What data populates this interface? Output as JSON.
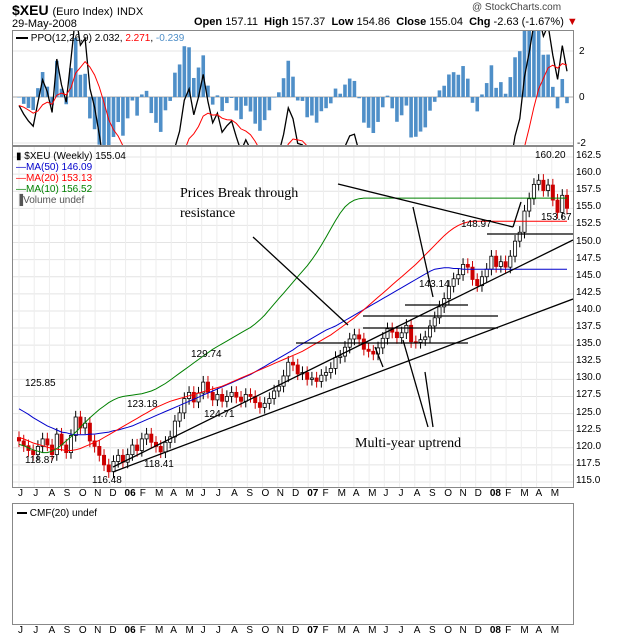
{
  "header": {
    "symbol": "$XEU",
    "name": "(Euro Index)",
    "exchange": "INDX",
    "date": "29-May-2008",
    "open_label": "Open",
    "open": "157.11",
    "high_label": "High",
    "high": "157.37",
    "low_label": "Low",
    "low": "154.86",
    "close_label": "Close",
    "close": "155.04",
    "chg_label": "Chg",
    "chg": "-2.63 (-1.67%)",
    "chg_arrow": "▼",
    "watermark": "@ StockCharts.com"
  },
  "ppo_panel": {
    "label": "PPO(12,26,9)",
    "v1": "2.032",
    "v2": "2.271",
    "v3": "-0.239",
    "y_ticks": [
      "2",
      "0",
      "-2"
    ],
    "colors": {
      "ppo": "#000000",
      "signal": "#ff0000",
      "hist": "#4f8fc8"
    }
  },
  "price_panel": {
    "legend": [
      {
        "text": "$XEU (Weekly) 155.04",
        "color": "#000000",
        "icon": "candle-icon"
      },
      {
        "text": "MA(50) 146.09",
        "color": "#0000cc",
        "icon": "line-icon"
      },
      {
        "text": "MA(20) 153.13",
        "color": "#ff0000",
        "icon": "line-icon"
      },
      {
        "text": "MA(10) 156.52",
        "color": "#008000",
        "icon": "line-icon"
      },
      {
        "text": "Volume undef",
        "color": "#000000",
        "icon": "bars-icon"
      }
    ],
    "annotations": {
      "breakout": "Prices Break through resistance",
      "uptrend": "Multi-year uptrend"
    },
    "price_labels": [
      "118.87",
      "116.48",
      "125.85",
      "123.18",
      "118.41",
      "129.74",
      "124.71",
      "143.14",
      "148.97",
      "160.20",
      "153.67"
    ]
  },
  "cmf_panel": {
    "label": "CMF(20) undef"
  },
  "x_axis_labels": [
    "J",
    "J",
    "A",
    "S",
    "O",
    "N",
    "D",
    "06",
    "F",
    "M",
    "A",
    "M",
    "J",
    "J",
    "A",
    "S",
    "O",
    "N",
    "D",
    "07",
    "F",
    "M",
    "A",
    "M",
    "J",
    "J",
    "A",
    "S",
    "O",
    "N",
    "D",
    "08",
    "F",
    "M",
    "A",
    "M"
  ],
  "chart_data": {
    "type": "candlestick",
    "title": "$XEU (Euro Index) INDX",
    "subtitle": "29-May-2008",
    "ylim": [
      115.0,
      162.5
    ],
    "y_ticks": [
      115.0,
      117.5,
      120.0,
      122.5,
      125.0,
      127.5,
      130.0,
      132.5,
      135.0,
      137.5,
      140.0,
      142.5,
      145.0,
      147.5,
      150.0,
      152.5,
      155.0,
      157.5,
      160.0,
      162.5
    ],
    "series": [
      {
        "name": "$XEU (Weekly)",
        "values": [
          121.0,
          120.3,
          119.6,
          119.0,
          120.2,
          121.3,
          120.4,
          119.0,
          122.0,
          120.4,
          119.3,
          121.8,
          124.5,
          122.9,
          123.6,
          121.0,
          120.2,
          118.9,
          117.5,
          116.5,
          118.0,
          118.9,
          117.9,
          119.0,
          120.4,
          119.6,
          121.3,
          122.0,
          120.8,
          120.2,
          119.4,
          120.8,
          121.6,
          123.9,
          125.1,
          127.2,
          128.1,
          126.7,
          128.0,
          129.6,
          128.1,
          127.0,
          127.8,
          126.8,
          127.5,
          128.1,
          127.4,
          126.8,
          127.8,
          127.5,
          126.6,
          125.9,
          126.5,
          127.2,
          128.3,
          129.0,
          130.5,
          132.5,
          132.1,
          130.8,
          131.0,
          130.0,
          130.2,
          129.7,
          130.6,
          131.0,
          131.6,
          133.2,
          133.4,
          134.7,
          135.9,
          136.5,
          135.9,
          134.4,
          134.1,
          133.7,
          134.6,
          136.0,
          137.4,
          136.9,
          136.1,
          136.8,
          137.9,
          135.5,
          135.4,
          135.8,
          136.2,
          137.8,
          139.0,
          140.6,
          141.8,
          143.6,
          144.7,
          145.3,
          146.8,
          146.4,
          144.6,
          143.7,
          145.0,
          146.1,
          148.0,
          146.5,
          147.2,
          146.4,
          148.0,
          150.2,
          151.5,
          154.6,
          156.4,
          158.5,
          159.1,
          157.6,
          158.4,
          156.2,
          154.4,
          156.9,
          155.0
        ]
      },
      {
        "name": "MA(50)",
        "values": [
          125.7,
          125.3,
          124.9,
          124.4,
          124.0,
          123.6,
          123.2,
          122.9,
          122.6,
          122.3,
          122.2,
          122.0,
          121.9,
          121.9,
          121.9,
          122.0,
          122.0,
          122.1,
          122.2,
          122.3,
          122.5,
          122.6,
          122.8,
          123.0,
          123.2,
          123.5,
          123.8,
          124.1,
          124.4,
          124.7,
          125.0,
          125.3,
          125.6,
          125.9,
          126.2,
          126.5,
          126.8,
          127.1,
          127.4,
          127.7,
          128.0,
          128.3,
          128.6,
          128.9,
          129.2,
          129.5,
          129.8,
          130.1,
          130.4,
          130.7,
          131.1,
          131.5,
          131.9,
          132.3,
          132.7,
          133.1,
          133.5,
          133.9,
          134.3,
          134.8,
          135.2,
          135.6,
          136.0,
          136.4,
          136.8,
          137.2,
          137.5,
          137.8,
          138.2,
          138.6,
          139.0,
          139.4,
          139.8,
          140.2,
          140.6,
          141.0,
          141.4,
          141.8,
          142.2,
          142.6,
          143.0,
          143.4,
          143.8,
          144.2,
          144.6,
          145.0,
          145.4,
          145.8,
          146.1,
          146.2,
          146.3,
          146.3,
          146.2,
          146.2,
          146.1,
          146.1,
          146.1,
          146.1,
          146.1,
          146.1,
          146.1,
          146.1,
          146.1,
          146.1,
          146.1,
          146.1,
          146.1,
          146.1,
          146.1,
          146.1,
          146.1,
          146.1,
          146.1,
          146.1,
          146.1,
          146.1,
          146.1
        ]
      },
      {
        "name": "MA(20)",
        "values": [
          121.5,
          121.3,
          121.0,
          120.7,
          120.5,
          120.3,
          120.1,
          119.9,
          119.8,
          119.7,
          119.6,
          119.6,
          119.7,
          119.9,
          120.2,
          120.5,
          120.8,
          121.1,
          121.5,
          121.9,
          122.3,
          122.7,
          123.1,
          123.5,
          123.9,
          124.3,
          124.7,
          125.1,
          125.5,
          125.9,
          126.2,
          126.5,
          126.8,
          127.0,
          127.2,
          127.4,
          127.6,
          127.8,
          128.0,
          128.2,
          128.4,
          128.6,
          128.8,
          129.0,
          129.3,
          129.6,
          129.9,
          130.2,
          130.5,
          130.8,
          131.1,
          131.4,
          131.7,
          132.0,
          132.3,
          132.6,
          132.9,
          133.2,
          133.5,
          133.8,
          134.1,
          134.5,
          134.9,
          135.3,
          135.7,
          136.1,
          136.5,
          137.0,
          137.5,
          138.0,
          138.5,
          139.0,
          139.6,
          140.2,
          140.8,
          141.4,
          142.0,
          142.6,
          143.2,
          143.8,
          144.4,
          145.0,
          145.6,
          146.2,
          146.8,
          147.5,
          148.2,
          148.9,
          149.6,
          150.3,
          151.0,
          151.6,
          152.1,
          152.5,
          152.8,
          153.0,
          153.1,
          153.1,
          153.1,
          153.1,
          153.1,
          153.1,
          153.1,
          153.1,
          153.1,
          153.1,
          153.1,
          153.1,
          153.1,
          153.1,
          153.1,
          153.1,
          153.1,
          153.1,
          153.1,
          153.1,
          153.1
        ]
      },
      {
        "name": "MA(10)",
        "values": [
          120.5,
          120.3,
          120.0,
          119.7,
          119.5,
          119.3,
          119.3,
          119.5,
          119.9,
          120.4,
          121.0,
          121.6,
          122.3,
          123.0,
          123.7,
          124.4,
          125.0,
          125.6,
          126.1,
          126.6,
          127.0,
          127.3,
          127.5,
          127.6,
          127.7,
          127.8,
          127.9,
          128.1,
          128.3,
          128.6,
          129.0,
          129.4,
          129.9,
          130.4,
          130.9,
          131.4,
          131.9,
          132.4,
          132.9,
          133.4,
          133.9,
          134.4,
          134.8,
          135.2,
          135.6,
          136.0,
          136.4,
          136.8,
          137.2,
          137.6,
          138.1,
          138.7,
          139.4,
          140.2,
          141.0,
          141.8,
          142.6,
          143.4,
          144.2,
          145.0,
          145.8,
          146.6,
          147.5,
          148.5,
          149.6,
          150.8,
          152.0,
          153.2,
          154.3,
          155.2,
          155.8,
          156.2,
          156.4,
          156.5,
          156.5,
          156.5,
          156.5,
          156.5,
          156.5,
          156.5,
          156.5,
          156.5,
          156.5,
          156.5,
          156.5,
          156.5,
          156.5,
          156.5,
          156.5,
          156.5,
          156.5,
          156.5,
          156.5,
          156.5,
          156.5,
          156.5,
          156.5,
          156.5,
          156.5,
          156.5,
          156.5,
          156.5,
          156.5,
          156.5,
          156.5,
          156.5,
          156.5,
          156.5,
          156.5,
          156.5,
          156.5,
          156.5,
          156.5,
          156.5,
          156.5,
          156.5,
          156.5
        ]
      }
    ]
  }
}
